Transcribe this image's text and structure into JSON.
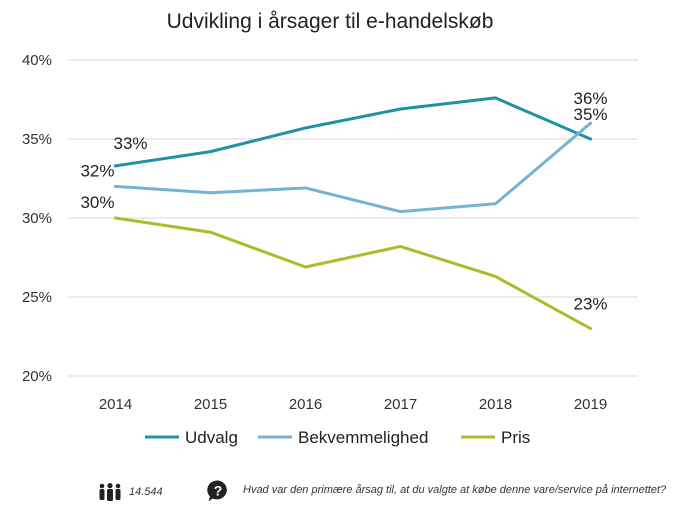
{
  "chart_data": {
    "type": "line",
    "title": "Udvikling i årsager til e-handelskøb",
    "x": [
      "2014",
      "2015",
      "2016",
      "2017",
      "2018",
      "2019"
    ],
    "ylim": [
      20,
      40
    ],
    "y_ticks": [
      20,
      25,
      30,
      35,
      40
    ],
    "y_tick_labels": [
      "20%",
      "25%",
      "30%",
      "35%",
      "40%"
    ],
    "grid": true,
    "legend_position": "bottom",
    "series": [
      {
        "name": "Udvalg",
        "color": "#1f93a3",
        "values": [
          33.3,
          34.2,
          35.7,
          36.9,
          37.6,
          35.0
        ],
        "labels": [
          {
            "index": 0,
            "text": "33%"
          },
          {
            "index": 5,
            "text": "35%"
          }
        ]
      },
      {
        "name": "Bekvemmelighed",
        "color": "#74b4d2",
        "values": [
          32.0,
          31.6,
          31.9,
          30.4,
          30.9,
          36.0
        ],
        "labels": [
          {
            "index": 0,
            "text": "32%"
          },
          {
            "index": 5,
            "text": "36%"
          }
        ]
      },
      {
        "name": "Pris",
        "color": "#a9bd2c",
        "values": [
          30.0,
          29.1,
          26.9,
          28.2,
          26.3,
          23.0
        ],
        "labels": [
          {
            "index": 0,
            "text": "30%"
          },
          {
            "index": 5,
            "text": "23%"
          }
        ]
      }
    ]
  },
  "footer": {
    "respondents_icon": "people-icon",
    "respondents": "14.544",
    "question_icon": "question-bubble-icon",
    "question": "Hvad var den primære årsag til, at du valgte at købe denne vare/service på internettet?"
  }
}
